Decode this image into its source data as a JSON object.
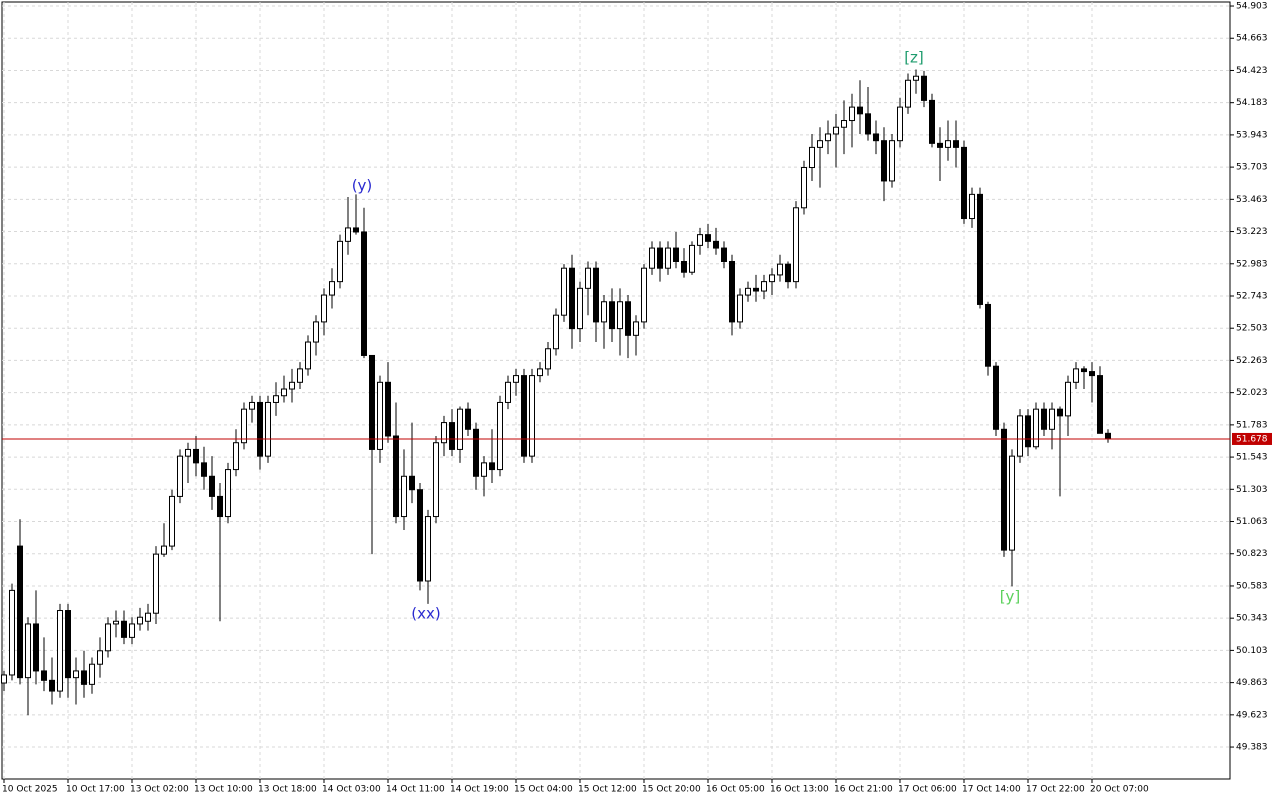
{
  "chart_data": {
    "type": "candlestick",
    "categories": [
      "10 Oct 2025",
      null,
      null,
      null,
      null,
      null,
      null,
      null,
      "10 Oct 17:00",
      null,
      null,
      null,
      null,
      null,
      null,
      null,
      "13 Oct 02:00",
      null,
      null,
      null,
      null,
      null,
      null,
      null,
      "13 Oct 10:00",
      null,
      null,
      null,
      null,
      null,
      null,
      null,
      "13 Oct 18:00",
      null,
      null,
      null,
      null,
      null,
      null,
      null,
      "14 Oct 03:00",
      null,
      null,
      null,
      null,
      null,
      null,
      null,
      "14 Oct 11:00",
      null,
      null,
      null,
      null,
      null,
      null,
      null,
      "14 Oct 19:00",
      null,
      null,
      null,
      null,
      null,
      null,
      null,
      "15 Oct 04:00",
      null,
      null,
      null,
      null,
      null,
      null,
      null,
      "15 Oct 12:00",
      null,
      null,
      null,
      null,
      null,
      null,
      null,
      "15 Oct 20:00",
      null,
      null,
      null,
      null,
      null,
      null,
      null,
      "16 Oct 05:00",
      null,
      null,
      null,
      null,
      null,
      null,
      null,
      "16 Oct 13:00",
      null,
      null,
      null,
      null,
      null,
      null,
      null,
      "16 Oct 21:00",
      null,
      null,
      null,
      null,
      null,
      null,
      null,
      "17 Oct 06:00",
      null,
      null,
      null,
      null,
      null,
      null,
      null,
      "17 Oct 14:00",
      null,
      null,
      null,
      null,
      null,
      null,
      null,
      "17 Oct 22:00",
      null,
      null,
      null,
      null,
      null,
      null,
      null,
      "20 Oct 07:00",
      null,
      null
    ],
    "ohlc": [
      [
        49.86,
        49.95,
        49.8,
        49.92
      ],
      [
        49.92,
        50.6,
        49.88,
        50.55
      ],
      [
        50.88,
        51.08,
        49.85,
        49.9
      ],
      [
        49.9,
        50.35,
        49.62,
        50.3
      ],
      [
        50.3,
        50.55,
        49.85,
        49.95
      ],
      [
        49.95,
        50.2,
        49.8,
        49.88
      ],
      [
        49.88,
        50.05,
        49.7,
        49.8
      ],
      [
        49.8,
        50.45,
        49.75,
        50.4
      ],
      [
        50.4,
        50.45,
        49.75,
        49.9
      ],
      [
        49.9,
        50.05,
        49.7,
        49.95
      ],
      [
        49.95,
        50.1,
        49.75,
        49.85
      ],
      [
        49.85,
        50.05,
        49.78,
        50.0
      ],
      [
        50.0,
        50.2,
        49.9,
        50.1
      ],
      [
        50.1,
        50.35,
        50.05,
        50.3
      ],
      [
        50.3,
        50.4,
        50.2,
        50.32
      ],
      [
        50.32,
        50.4,
        50.15,
        50.2
      ],
      [
        50.2,
        50.35,
        50.15,
        50.3
      ],
      [
        50.3,
        50.42,
        50.25,
        50.35
      ],
      [
        50.32,
        50.45,
        50.25,
        50.38
      ],
      [
        50.38,
        50.88,
        50.3,
        50.82
      ],
      [
        50.82,
        51.05,
        50.8,
        50.88
      ],
      [
        50.88,
        51.3,
        50.85,
        51.25
      ],
      [
        51.25,
        51.6,
        51.2,
        51.55
      ],
      [
        51.55,
        51.65,
        51.35,
        51.6
      ],
      [
        51.6,
        51.7,
        51.4,
        51.5
      ],
      [
        51.5,
        51.62,
        51.3,
        51.4
      ],
      [
        51.4,
        51.55,
        51.15,
        51.25
      ],
      [
        51.25,
        51.35,
        50.32,
        51.1
      ],
      [
        51.1,
        51.5,
        51.05,
        51.45
      ],
      [
        51.45,
        51.75,
        51.4,
        51.65
      ],
      [
        51.65,
        51.95,
        51.6,
        51.9
      ],
      [
        51.9,
        52.0,
        51.8,
        51.95
      ],
      [
        51.95,
        52.0,
        51.45,
        51.55
      ],
      [
        51.55,
        52.0,
        51.5,
        51.95
      ],
      [
        51.95,
        52.1,
        51.85,
        52.0
      ],
      [
        52.0,
        52.15,
        51.95,
        52.05
      ],
      [
        52.05,
        52.2,
        51.95,
        52.1
      ],
      [
        52.1,
        52.25,
        52.05,
        52.2
      ],
      [
        52.2,
        52.45,
        52.15,
        52.4
      ],
      [
        52.4,
        52.6,
        52.3,
        52.55
      ],
      [
        52.55,
        52.8,
        52.45,
        52.75
      ],
      [
        52.75,
        52.95,
        52.65,
        52.85
      ],
      [
        52.85,
        53.2,
        52.8,
        53.15
      ],
      [
        53.15,
        53.48,
        53.05,
        53.25
      ],
      [
        53.25,
        53.5,
        53.2,
        53.22
      ],
      [
        53.22,
        53.4,
        52.28,
        52.3
      ],
      [
        52.3,
        52.3,
        50.82,
        51.6
      ],
      [
        51.6,
        52.15,
        51.5,
        52.1
      ],
      [
        52.1,
        52.25,
        51.65,
        51.7
      ],
      [
        51.7,
        51.95,
        51.05,
        51.1
      ],
      [
        51.1,
        51.6,
        51.0,
        51.4
      ],
      [
        51.4,
        51.8,
        51.2,
        51.3
      ],
      [
        51.3,
        51.35,
        50.55,
        50.62
      ],
      [
        50.62,
        51.15,
        50.45,
        51.1
      ],
      [
        51.1,
        51.7,
        51.05,
        51.65
      ],
      [
        51.65,
        51.85,
        51.55,
        51.8
      ],
      [
        51.8,
        51.9,
        51.55,
        51.6
      ],
      [
        51.6,
        51.92,
        51.5,
        51.9
      ],
      [
        51.9,
        51.95,
        51.7,
        51.75
      ],
      [
        51.75,
        51.8,
        51.3,
        51.4
      ],
      [
        51.4,
        51.55,
        51.25,
        51.5
      ],
      [
        51.5,
        51.75,
        51.35,
        51.45
      ],
      [
        51.45,
        52.0,
        51.4,
        51.95
      ],
      [
        51.95,
        52.15,
        51.9,
        52.1
      ],
      [
        52.1,
        52.2,
        52.0,
        52.15
      ],
      [
        52.15,
        52.2,
        51.5,
        51.55
      ],
      [
        51.55,
        52.2,
        51.5,
        52.15
      ],
      [
        52.15,
        52.25,
        52.1,
        52.2
      ],
      [
        52.2,
        52.4,
        52.15,
        52.35
      ],
      [
        52.35,
        52.65,
        52.3,
        52.6
      ],
      [
        52.6,
        52.98,
        52.55,
        52.95
      ],
      [
        52.95,
        53.05,
        52.35,
        52.5
      ],
      [
        52.5,
        52.85,
        52.4,
        52.8
      ],
      [
        52.8,
        53.0,
        52.6,
        52.95
      ],
      [
        52.95,
        53.0,
        52.4,
        52.55
      ],
      [
        52.55,
        52.75,
        52.35,
        52.7
      ],
      [
        52.7,
        52.8,
        52.4,
        52.5
      ],
      [
        52.5,
        52.8,
        52.3,
        52.7
      ],
      [
        52.7,
        52.75,
        52.28,
        52.45
      ],
      [
        52.45,
        52.6,
        52.3,
        52.55
      ],
      [
        52.55,
        52.98,
        52.5,
        52.95
      ],
      [
        52.95,
        53.15,
        52.9,
        53.1
      ],
      [
        53.1,
        53.15,
        52.85,
        52.95
      ],
      [
        52.95,
        53.15,
        52.9,
        53.1
      ],
      [
        53.1,
        53.22,
        52.95,
        53.0
      ],
      [
        53.0,
        53.1,
        52.88,
        52.92
      ],
      [
        52.92,
        53.15,
        52.9,
        53.12
      ],
      [
        53.12,
        53.25,
        53.05,
        53.2
      ],
      [
        53.2,
        53.28,
        53.1,
        53.15
      ],
      [
        53.15,
        53.25,
        53.05,
        53.1
      ],
      [
        53.1,
        53.15,
        52.95,
        53.0
      ],
      [
        53.0,
        53.05,
        52.45,
        52.55
      ],
      [
        52.55,
        52.8,
        52.5,
        52.75
      ],
      [
        52.75,
        52.85,
        52.7,
        52.8
      ],
      [
        52.8,
        52.9,
        52.7,
        52.78
      ],
      [
        52.78,
        52.9,
        52.72,
        52.85
      ],
      [
        52.85,
        52.95,
        52.75,
        52.9
      ],
      [
        52.9,
        53.05,
        52.85,
        52.98
      ],
      [
        52.98,
        53.0,
        52.8,
        52.85
      ],
      [
        52.85,
        53.45,
        52.8,
        53.4
      ],
      [
        53.4,
        53.75,
        53.35,
        53.7
      ],
      [
        53.7,
        53.95,
        53.6,
        53.85
      ],
      [
        53.85,
        54.0,
        53.55,
        53.9
      ],
      [
        53.9,
        54.05,
        53.8,
        53.95
      ],
      [
        53.95,
        54.1,
        53.7,
        54.0
      ],
      [
        54.0,
        54.2,
        53.8,
        54.05
      ],
      [
        54.05,
        54.25,
        53.85,
        54.15
      ],
      [
        54.15,
        54.35,
        53.95,
        54.1
      ],
      [
        54.1,
        54.3,
        53.9,
        53.95
      ],
      [
        53.95,
        54.05,
        53.8,
        53.9
      ],
      [
        53.9,
        54.0,
        53.45,
        53.6
      ],
      [
        53.6,
        53.95,
        53.55,
        53.9
      ],
      [
        53.9,
        54.22,
        53.85,
        54.15
      ],
      [
        54.15,
        54.4,
        54.1,
        54.35
      ],
      [
        54.35,
        54.43,
        54.25,
        54.38
      ],
      [
        54.38,
        54.42,
        54.15,
        54.2
      ],
      [
        54.2,
        54.25,
        53.85,
        53.88
      ],
      [
        53.88,
        54.0,
        53.6,
        53.85
      ],
      [
        53.85,
        54.05,
        53.75,
        53.9
      ],
      [
        53.9,
        54.05,
        53.7,
        53.85
      ],
      [
        53.85,
        53.9,
        53.28,
        53.32
      ],
      [
        53.32,
        53.55,
        53.25,
        53.5
      ],
      [
        53.5,
        53.55,
        52.65,
        52.68
      ],
      [
        52.68,
        52.7,
        52.15,
        52.22
      ],
      [
        52.22,
        52.25,
        51.7,
        51.75
      ],
      [
        51.75,
        51.8,
        50.8,
        50.85
      ],
      [
        50.85,
        51.6,
        50.58,
        51.55
      ],
      [
        51.55,
        51.9,
        51.5,
        51.85
      ],
      [
        51.85,
        51.9,
        51.55,
        51.62
      ],
      [
        51.62,
        51.95,
        51.6,
        51.9
      ],
      [
        51.9,
        51.95,
        51.7,
        51.75
      ],
      [
        51.75,
        51.95,
        51.6,
        51.9
      ],
      [
        51.9,
        51.92,
        51.25,
        51.85
      ],
      [
        51.85,
        52.15,
        51.7,
        52.1
      ],
      [
        52.1,
        52.25,
        52.05,
        52.2
      ],
      [
        52.2,
        52.22,
        52.05,
        52.18
      ],
      [
        52.18,
        52.25,
        51.95,
        52.15
      ],
      [
        52.15,
        52.22,
        51.72,
        51.72
      ],
      [
        51.72,
        51.75,
        51.65,
        51.68
      ]
    ],
    "ylim": [
      49.145,
      54.933
    ],
    "yticks": [
      54.903,
      54.663,
      54.423,
      54.183,
      53.943,
      53.703,
      53.463,
      53.223,
      52.983,
      52.743,
      52.503,
      52.263,
      52.023,
      51.783,
      51.543,
      51.303,
      51.063,
      50.823,
      50.583,
      50.343,
      50.103,
      49.863,
      49.623,
      49.383
    ],
    "grid": true,
    "current_price": {
      "value": 51.678,
      "label": "51.678",
      "color": "#c00000"
    },
    "annotations": [
      {
        "text": "(y)",
        "color": "#2a2ad0"
      },
      {
        "text": "(xx)",
        "color": "#2a2ad0"
      },
      {
        "text": "[z]",
        "color": "#1f9c6e"
      },
      {
        "text": "[y]",
        "color": "#5ad05a"
      }
    ],
    "up_color": "#ffffff",
    "down_color": "#000000"
  }
}
